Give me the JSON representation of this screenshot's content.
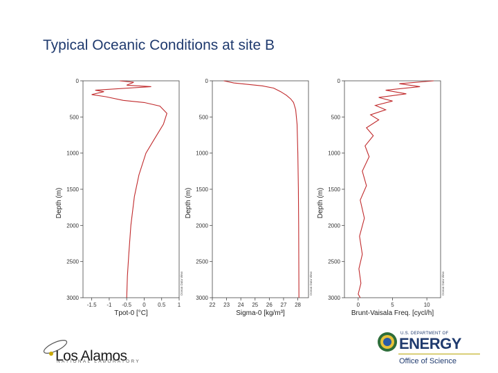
{
  "slide": {
    "title": "Typical Oceanic Conditions at site B"
  },
  "chart_data": [
    {
      "type": "line",
      "xlabel": "Tpot-0 [°C]",
      "ylabel": "Depth (m)",
      "xticks": [
        -1.5,
        -1,
        -0.5,
        0,
        0.5,
        1
      ],
      "xlim": [
        -1.75,
        1.0
      ],
      "yticks": [
        0,
        500,
        1000,
        1500,
        2000,
        2500,
        3000
      ],
      "ylim": [
        0,
        3000
      ],
      "watermark": "Ocean Data View",
      "series": [
        {
          "color": "#c0292b",
          "x": [
            -0.7,
            -0.3,
            -0.5,
            0.2,
            -1.4,
            -1.15,
            -1.5,
            -1.1,
            -0.6,
            0.0,
            0.45,
            0.65,
            0.55,
            0.3,
            0.05,
            -0.15,
            -0.28,
            -0.38,
            -0.44,
            -0.48,
            -0.5
          ],
          "y": [
            0,
            20,
            60,
            80,
            130,
            150,
            190,
            220,
            270,
            300,
            350,
            450,
            600,
            800,
            1000,
            1300,
            1600,
            2000,
            2400,
            2700,
            3000
          ]
        }
      ]
    },
    {
      "type": "line",
      "xlabel": "Sigma-0 [kg/m³]",
      "ylabel": "Depth (m)",
      "xticks": [
        22,
        23,
        24,
        25,
        26,
        27,
        28
      ],
      "xlim": [
        22,
        28.75
      ],
      "yticks": [
        0,
        500,
        1000,
        1500,
        2000,
        2500,
        3000
      ],
      "ylim": [
        0,
        3000
      ],
      "watermark": "Ocean Data View",
      "series": [
        {
          "color": "#c0292b",
          "x": [
            22.8,
            23.5,
            24.5,
            25.5,
            26.3,
            26.8,
            27.2,
            27.5,
            27.7,
            27.85,
            27.95,
            28.0,
            28.04,
            28.06,
            28.08
          ],
          "y": [
            0,
            30,
            50,
            70,
            100,
            150,
            200,
            250,
            300,
            400,
            600,
            1000,
            1500,
            2000,
            3000
          ]
        }
      ]
    },
    {
      "type": "line",
      "xlabel": "Brunt-Vaisala Freq. [cycl/h]",
      "ylabel": "Depth (m)",
      "xticks": [
        0,
        5,
        10
      ],
      "xlim": [
        -2,
        12
      ],
      "yticks": [
        0,
        500,
        1000,
        1500,
        2000,
        2500,
        3000
      ],
      "ylim": [
        0,
        3000
      ],
      "watermark": "Ocean Data View",
      "series": [
        {
          "color": "#c0292b",
          "x": [
            11,
            6,
            9,
            4,
            7,
            3,
            5,
            2.5,
            4,
            1.8,
            3,
            1.2,
            2.2,
            1.0,
            1.6,
            0.6,
            1.2,
            0.3,
            0.9,
            0.2,
            0.6,
            0.1,
            0.4,
            0.0,
            0.3
          ],
          "y": [
            0,
            40,
            80,
            130,
            180,
            230,
            280,
            340,
            400,
            470,
            540,
            650,
            760,
            900,
            1050,
            1250,
            1450,
            1650,
            1900,
            2150,
            2400,
            2600,
            2800,
            2950,
            3000
          ]
        }
      ]
    }
  ],
  "logos": {
    "left_name": "Los Alamos",
    "left_sub": "NATIONAL LABORATORY",
    "right_dept": "U.S. DEPARTMENT OF",
    "right_name": "ENERGY",
    "right_sub": "Office of Science"
  }
}
